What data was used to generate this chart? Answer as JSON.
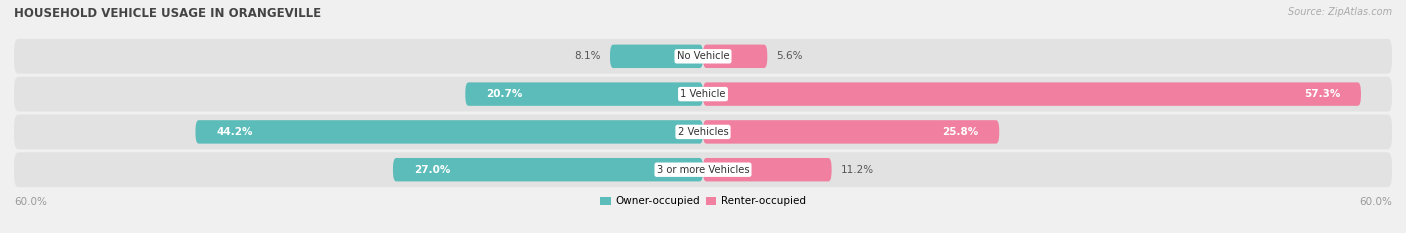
{
  "title": "HOUSEHOLD VEHICLE USAGE IN ORANGEVILLE",
  "source": "Source: ZipAtlas.com",
  "categories": [
    "No Vehicle",
    "1 Vehicle",
    "2 Vehicles",
    "3 or more Vehicles"
  ],
  "owner_values": [
    8.1,
    20.7,
    44.2,
    27.0
  ],
  "renter_values": [
    5.6,
    57.3,
    25.8,
    11.2
  ],
  "owner_color": "#5bbcba",
  "renter_color": "#f07fa0",
  "axis_max": 60.0,
  "axis_label_left": "60.0%",
  "axis_label_right": "60.0%",
  "legend_owner": "Owner-occupied",
  "legend_renter": "Renter-occupied",
  "bg_color": "#f0f0f0",
  "bar_bg_color": "#e2e2e2",
  "title_color": "#444444",
  "label_dark": "#555555",
  "label_light": "#ffffff",
  "source_color": "#aaaaaa"
}
